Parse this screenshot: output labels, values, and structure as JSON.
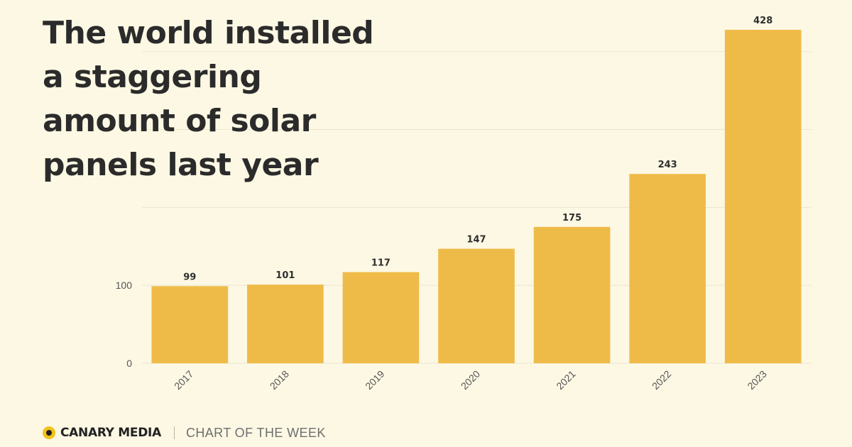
{
  "headline": {
    "lines": [
      "The world installed",
      "a staggering",
      "amount of solar",
      "panels last year"
    ]
  },
  "footer": {
    "brand": "CANARY MEDIA",
    "tagline": "CHART OF THE WEEK",
    "logo_color": "#f2c21b"
  },
  "chart_data": {
    "type": "bar",
    "title": "",
    "xlabel": "",
    "ylabel": "",
    "categories": [
      "2017",
      "2018",
      "2019",
      "2020",
      "2021",
      "2022",
      "2023"
    ],
    "values": [
      99,
      101,
      117,
      147,
      175,
      243,
      428
    ],
    "data_labels": [
      "99",
      "101",
      "117",
      "147",
      "175",
      "243",
      "428"
    ],
    "ylim": [
      0,
      428
    ],
    "y_ticks": [
      0,
      100
    ],
    "y_tick_labels": [
      "0",
      "100"
    ],
    "grid": true,
    "legend": "none",
    "bar_color": "#efbb48",
    "grid_color": "#ece6d0",
    "label_color": "#2f2f2f"
  }
}
